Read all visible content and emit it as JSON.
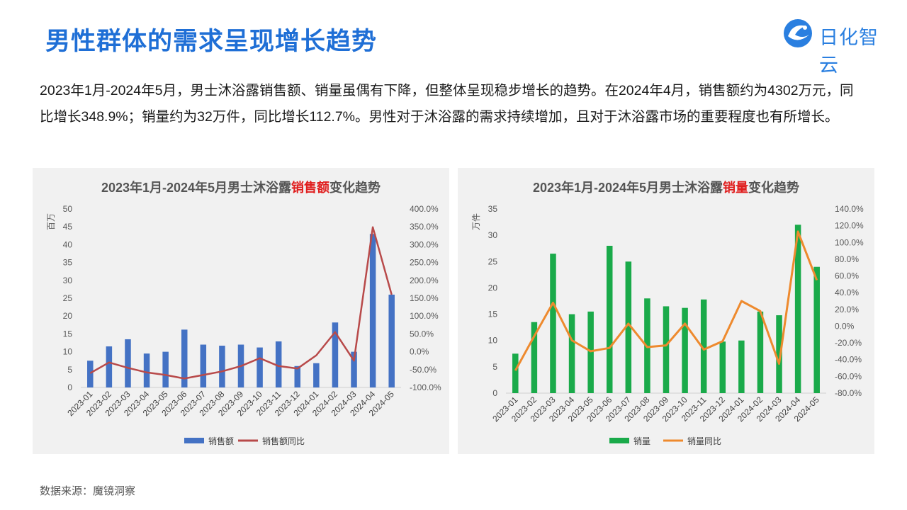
{
  "header": {
    "title": "男性群体的需求呈现增长趋势",
    "logo_text": "日化智云"
  },
  "description": "2023年1月-2024年5月，男士沐浴露销售额、销量虽偶有下降，但整体呈现稳步增长的趋势。在2024年4月，销售额约为4302万元，同比增长348.9%；销量约为32万件，同比增长112.7%。男性对于沐浴露的需求持续增加，且对于沐浴露市场的重要程度也有所增长。",
  "footer": {
    "source": "数据来源：魔镜洞察"
  },
  "colors": {
    "title_blue": "#1f6fd6",
    "bar_blue": "#4472c4",
    "line_red": "#b84a4a",
    "bar_green": "#1aaa4a",
    "line_orange": "#ee8a2e",
    "highlight_red": "#e01e1e"
  },
  "chart_data": [
    {
      "type": "bar",
      "title_pre": "2023年1月-2024年5月男士沐浴露",
      "title_hl": "销售额",
      "title_post": "变化趋势",
      "ylabel": "百万",
      "categories": [
        "2023-01",
        "2023-02",
        "2023-03",
        "2023-04",
        "2023-05",
        "2023-06",
        "2023-07",
        "2023-08",
        "2023-09",
        "2023-10",
        "2023-11",
        "2023-12",
        "2024-01",
        "2024-02",
        "2024-03",
        "2024-04",
        "2024-05"
      ],
      "series": [
        {
          "name": "销售额",
          "type": "bar",
          "axis": "left",
          "values": [
            7.5,
            11.5,
            13.5,
            9.5,
            10,
            16.2,
            12,
            11.7,
            12,
            11.2,
            12.9,
            6,
            6.8,
            18.2,
            10,
            43,
            26
          ]
        },
        {
          "name": "销售额同比",
          "type": "line",
          "axis": "right",
          "values": [
            -60,
            -30,
            -45,
            -58,
            -65,
            -75,
            -65,
            -55,
            -40,
            -18,
            -40,
            -47,
            -10,
            55,
            -25,
            349,
            160
          ]
        }
      ],
      "ylim": [
        0,
        50
      ],
      "yticks": [
        "0",
        "5",
        "10",
        "15",
        "20",
        "25",
        "30",
        "35",
        "40",
        "45",
        "50"
      ],
      "y2lim": [
        -100,
        400
      ],
      "y2ticks": [
        "-100.0%",
        "-50.0%",
        "0.0%",
        "50.0%",
        "100.0%",
        "150.0%",
        "200.0%",
        "250.0%",
        "300.0%",
        "350.0%",
        "400.0%"
      ]
    },
    {
      "type": "bar",
      "title_pre": "2023年1月-2024年5月男士沐浴露",
      "title_hl": "销量",
      "title_post": "变化趋势",
      "ylabel": "万件",
      "categories": [
        "2023-01",
        "2023-02",
        "2023-03",
        "2023-04",
        "2023-05",
        "2023-06",
        "2023-07",
        "2023-08",
        "2023-09",
        "2023-10",
        "2023-11",
        "2023-12",
        "2024-01",
        "2024-02",
        "2024-03",
        "2024-04",
        "2024-05"
      ],
      "series": [
        {
          "name": "销量",
          "type": "bar",
          "axis": "left",
          "values": [
            7.5,
            13.5,
            26.5,
            15,
            15.5,
            28,
            25,
            18,
            16.5,
            16.2,
            17.8,
            9.8,
            10,
            15.5,
            14.8,
            32,
            24
          ]
        },
        {
          "name": "销量同比",
          "type": "line",
          "axis": "right",
          "values": [
            -53,
            -12,
            28,
            -17,
            -30,
            -26,
            3,
            -25,
            -23,
            3,
            -28,
            -18,
            30,
            18,
            -45,
            113,
            55
          ]
        }
      ],
      "ylim": [
        0,
        35
      ],
      "yticks": [
        "0",
        "5",
        "10",
        "15",
        "20",
        "25",
        "30",
        "35"
      ],
      "y2lim": [
        -80,
        140
      ],
      "y2ticks": [
        "-80.0%",
        "-60.0%",
        "-40.0%",
        "-20.0%",
        "0.0%",
        "20.0%",
        "40.0%",
        "60.0%",
        "80.0%",
        "100.0%",
        "120.0%",
        "140.0%"
      ]
    }
  ]
}
